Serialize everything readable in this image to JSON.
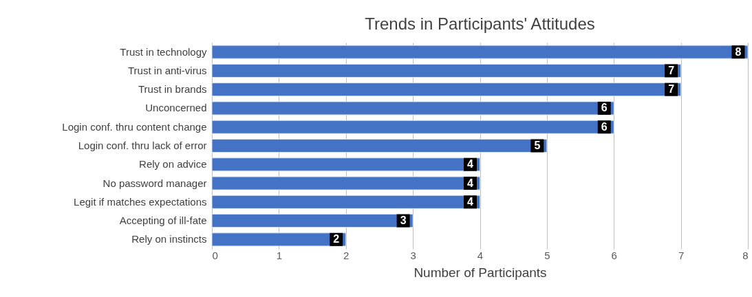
{
  "chart_data": {
    "type": "bar",
    "orientation": "horizontal",
    "title": "Trends in Participants' Attitudes",
    "xlabel": "Number of Participants",
    "categories": [
      "Trust in technology",
      "Trust in anti-virus",
      "Trust in brands",
      "Unconcerned",
      "Login conf. thru content change",
      "Login conf. thru lack of error",
      "Rely on advice",
      "No password manager",
      "Legit if matches expectations",
      "Accepting of ill-fate",
      "Rely on instincts"
    ],
    "values": [
      8,
      7,
      7,
      6,
      6,
      5,
      4,
      4,
      4,
      3,
      2
    ],
    "color": "#4472c4",
    "xlim": [
      0,
      8
    ],
    "xticks": [
      0,
      1,
      2,
      3,
      4,
      5,
      6,
      7,
      8
    ],
    "grid": "x",
    "data_labels": true
  }
}
